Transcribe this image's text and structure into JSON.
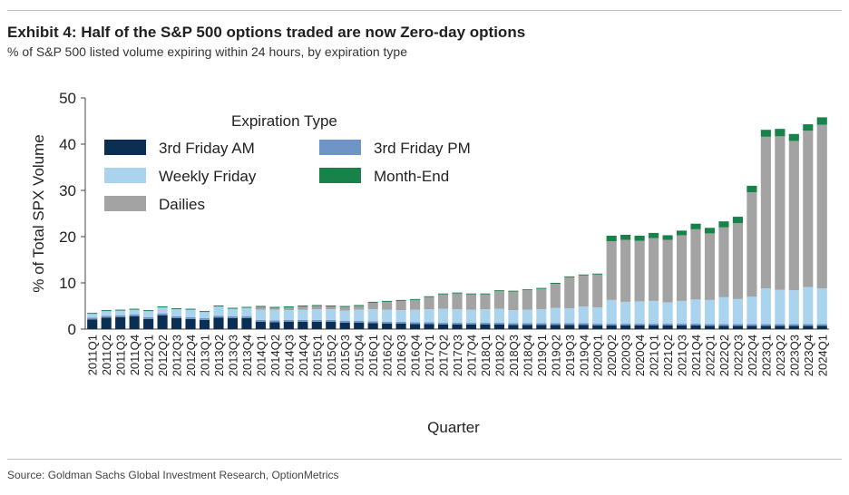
{
  "header": {
    "title": "Exhibit 4: Half of the S&P 500 options traded are now Zero-day options",
    "subtitle": "% of S&P 500 listed volume expiring within 24 hours, by expiration type"
  },
  "footer": {
    "source": "Source: Goldman Sachs Global Investment Research, OptionMetrics"
  },
  "chart_data": {
    "type": "bar",
    "stacked": true,
    "xlabel": "Quarter",
    "ylabel": "% of Total SPX Volume",
    "ylim": [
      0,
      50
    ],
    "yticks": [
      0,
      10,
      20,
      30,
      40,
      50
    ],
    "grid": false,
    "legend": {
      "title": "Expiration Type",
      "placement": "top-left"
    },
    "categories": [
      "2011Q1",
      "2011Q2",
      "2011Q3",
      "2011Q4",
      "2012Q1",
      "2012Q2",
      "2012Q3",
      "2012Q4",
      "2013Q1",
      "2013Q2",
      "2013Q3",
      "2013Q4",
      "2014Q1",
      "2014Q2",
      "2014Q3",
      "2014Q4",
      "2015Q1",
      "2015Q2",
      "2015Q3",
      "2015Q4",
      "2016Q1",
      "2016Q2",
      "2016Q3",
      "2016Q4",
      "2017Q1",
      "2017Q2",
      "2017Q3",
      "2017Q4",
      "2018Q1",
      "2018Q2",
      "2018Q3",
      "2018Q4",
      "2019Q1",
      "2019Q2",
      "2019Q3",
      "2019Q4",
      "2020Q1",
      "2020Q2",
      "2020Q3",
      "2020Q4",
      "2021Q1",
      "2021Q2",
      "2021Q3",
      "2021Q4",
      "2022Q1",
      "2022Q2",
      "2022Q3",
      "2022Q4",
      "2023Q1",
      "2023Q2",
      "2023Q3",
      "2023Q4",
      "2024Q1"
    ],
    "series": [
      {
        "name": "3rd Friday AM",
        "color": "#0b2f52",
        "values": [
          2.1,
          2.5,
          2.6,
          2.8,
          2.2,
          3.0,
          2.4,
          2.2,
          2.0,
          2.5,
          2.4,
          2.4,
          1.6,
          1.5,
          1.6,
          1.6,
          1.6,
          1.6,
          1.4,
          1.4,
          1.3,
          1.2,
          1.2,
          1.1,
          1.1,
          1.0,
          1.0,
          1.0,
          1.0,
          1.0,
          0.9,
          0.9,
          0.9,
          0.9,
          0.9,
          0.9,
          0.8,
          0.8,
          0.8,
          0.8,
          0.8,
          0.8,
          0.8,
          0.8,
          0.7,
          0.7,
          0.7,
          0.7,
          0.7,
          0.7,
          0.7,
          0.7,
          0.7
        ]
      },
      {
        "name": "3rd Friday PM",
        "color": "#6f95c6",
        "values": [
          0.4,
          0.4,
          0.4,
          0.4,
          0.4,
          0.4,
          0.4,
          0.4,
          0.4,
          0.4,
          0.4,
          0.4,
          0.4,
          0.4,
          0.4,
          0.4,
          0.4,
          0.4,
          0.4,
          0.4,
          0.4,
          0.4,
          0.4,
          0.4,
          0.4,
          0.4,
          0.4,
          0.4,
          0.4,
          0.4,
          0.4,
          0.4,
          0.4,
          0.4,
          0.4,
          0.4,
          0.4,
          0.4,
          0.4,
          0.4,
          0.4,
          0.4,
          0.4,
          0.4,
          0.4,
          0.4,
          0.4,
          0.4,
          0.4,
          0.4,
          0.4,
          0.4,
          0.4
        ]
      },
      {
        "name": "Weekly Friday",
        "color": "#aad4ee",
        "values": [
          0.8,
          1.0,
          1.0,
          1.0,
          1.3,
          1.3,
          1.5,
          1.6,
          1.3,
          2.0,
          1.6,
          1.8,
          2.2,
          2.3,
          2.1,
          2.2,
          2.3,
          2.3,
          2.2,
          2.4,
          2.6,
          2.6,
          2.5,
          2.7,
          2.8,
          3.0,
          2.9,
          2.8,
          2.9,
          3.0,
          2.8,
          2.9,
          3.0,
          3.3,
          3.2,
          3.6,
          3.5,
          5.1,
          4.7,
          4.8,
          4.9,
          4.6,
          4.9,
          5.2,
          5.2,
          5.8,
          5.4,
          5.9,
          7.7,
          7.4,
          7.3,
          8.0,
          7.7
        ]
      },
      {
        "name": "Dailies",
        "color": "#a3a3a3",
        "values": [
          0,
          0,
          0,
          0,
          0,
          0,
          0,
          0,
          0,
          0,
          0,
          0,
          0.6,
          0.4,
          0.6,
          0.7,
          0.7,
          0.6,
          0.8,
          0.8,
          1.4,
          1.7,
          2.0,
          2.1,
          2.6,
          3.1,
          3.4,
          3.3,
          3.2,
          3.8,
          4.0,
          4.2,
          4.4,
          5.2,
          6.7,
          6.7,
          7.1,
          12.7,
          13.4,
          13.1,
          13.6,
          13.5,
          14.2,
          15.2,
          14.4,
          15.1,
          16.4,
          22.6,
          32.8,
          33.2,
          32.3,
          33.8,
          35.4
        ]
      },
      {
        "name": "Month-End",
        "color": "#17834a",
        "values": [
          0.2,
          0.2,
          0.2,
          0.2,
          0.2,
          0.2,
          0.2,
          0.2,
          0.2,
          0.2,
          0.2,
          0.2,
          0.2,
          0.2,
          0.2,
          0.2,
          0.2,
          0.2,
          0.2,
          0.2,
          0.2,
          0.2,
          0.2,
          0.2,
          0.2,
          0.2,
          0.2,
          0.2,
          0.2,
          0.2,
          0.2,
          0.2,
          0.2,
          0.2,
          0.2,
          0.2,
          0.2,
          1.2,
          1.1,
          1.1,
          1.1,
          1.0,
          1.0,
          1.2,
          1.2,
          1.3,
          1.4,
          1.4,
          1.5,
          1.6,
          1.5,
          1.4,
          1.6
        ]
      }
    ]
  }
}
